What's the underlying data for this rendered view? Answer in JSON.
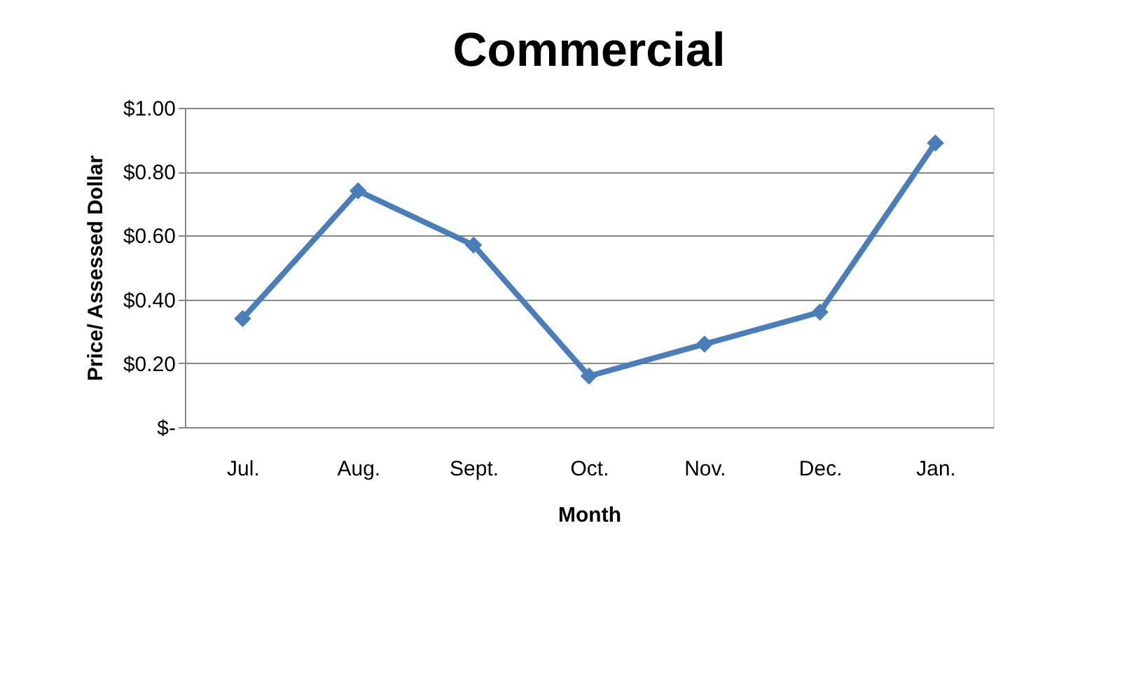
{
  "chart_data": {
    "type": "line",
    "title": "Commercial",
    "xlabel": "Month",
    "ylabel": "Price/ Assessed Dollar",
    "categories": [
      "Jul.",
      "Aug.",
      "Sept.",
      "Oct.",
      "Nov.",
      "Dec.",
      "Jan."
    ],
    "series": [
      {
        "color": "#4a7ebb",
        "values": [
          0.34,
          0.74,
          0.57,
          0.16,
          0.26,
          0.36,
          0.89
        ]
      }
    ],
    "ylim": [
      0,
      1.0
    ],
    "yticks": [
      {
        "value": 0,
        "label": "$-"
      },
      {
        "value": 0.2,
        "label": "$0.20"
      },
      {
        "value": 0.4,
        "label": "$0.40"
      },
      {
        "value": 0.6,
        "label": "$0.60"
      },
      {
        "value": 0.8,
        "label": "$0.80"
      },
      {
        "value": 1.0,
        "label": "$1.00"
      }
    ],
    "grid": "y",
    "marker": "diamond",
    "line_style": "solid"
  }
}
